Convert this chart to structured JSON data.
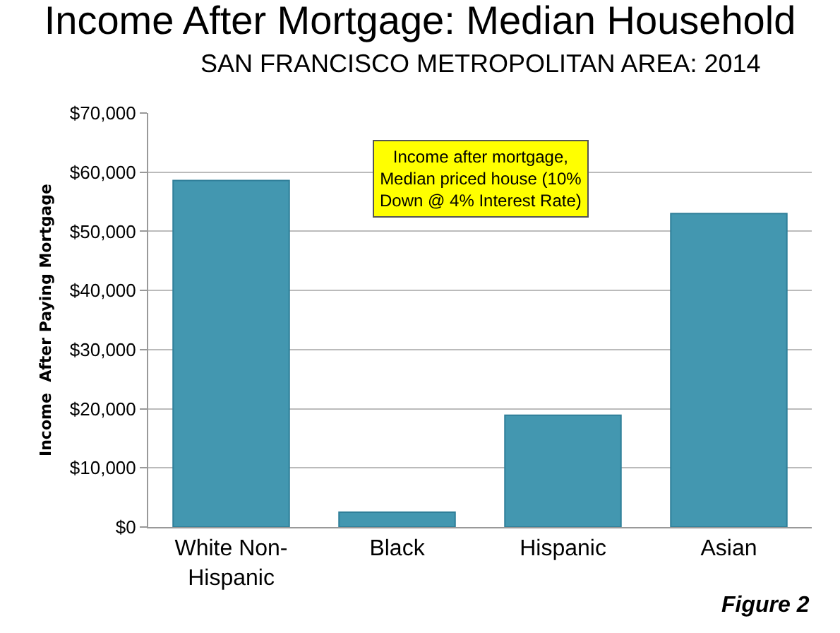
{
  "chart_data": {
    "type": "bar",
    "title": "Income After Mortgage: Median Household",
    "subtitle": "SAN FRANCISCO METROPOLITAN AREA: 2014",
    "ylabel": "Income  After Paying Mortgage",
    "categories": [
      "White Non-\nHispanic",
      "Black",
      "Hispanic",
      "Asian"
    ],
    "values": [
      58600,
      2500,
      18900,
      53000
    ],
    "color": "#4397b0",
    "ylim": [
      0,
      70000
    ],
    "yticks": [
      {
        "value": 0,
        "label": "$0"
      },
      {
        "value": 10000,
        "label": "$10,000"
      },
      {
        "value": 20000,
        "label": "$20,000"
      },
      {
        "value": 30000,
        "label": "$30,000"
      },
      {
        "value": 40000,
        "label": "$40,000"
      },
      {
        "value": 50000,
        "label": "$50,000"
      },
      {
        "value": 60000,
        "label": "$60,000"
      },
      {
        "value": 70000,
        "label": "$70,000"
      }
    ],
    "grid": "y",
    "annotations": [
      "Income after mortgage,\nMedian priced house (10%\nDown @ 4% Interest Rate)",
      "Figure 2"
    ]
  }
}
